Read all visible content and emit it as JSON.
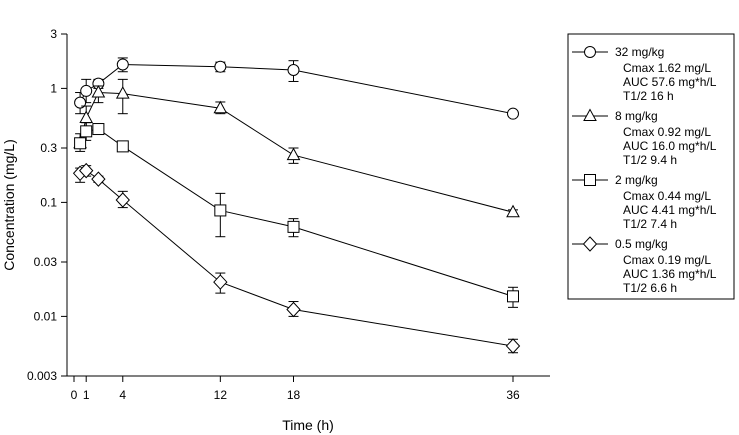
{
  "chart_data": {
    "type": "line",
    "xlabel": "Time (h)",
    "ylabel": "Concentration (mg/L)",
    "xlim": [
      0,
      36
    ],
    "ylim": [
      0.003,
      3
    ],
    "yscale": "log",
    "xticks": [
      0,
      1,
      4,
      12,
      18,
      36
    ],
    "yticks": [
      {
        "value": 0.003,
        "label": "0.003"
      },
      {
        "value": 0.01,
        "label": "0.01"
      },
      {
        "value": 0.03,
        "label": "0.03"
      },
      {
        "value": 0.1,
        "label": "0.1"
      },
      {
        "value": 0.3,
        "label": "0.3"
      },
      {
        "value": 1,
        "label": "1"
      },
      {
        "value": 3,
        "label": "3"
      }
    ],
    "grid": false,
    "legend_position": "right",
    "series": [
      {
        "name": "32 mg/kg",
        "marker": "circle",
        "lines": [
          "Cmax 1.62 mg/L",
          "AUC 57.6 mg*h/L",
          "T1/2 16 h"
        ],
        "x": [
          0.5,
          1,
          2,
          4,
          12,
          18,
          36
        ],
        "y": [
          0.75,
          0.95,
          1.1,
          1.62,
          1.55,
          1.45,
          0.6
        ],
        "err_low": [
          0.6,
          0.75,
          1.0,
          1.4,
          1.4,
          1.15,
          0.58
        ],
        "err_high": [
          0.92,
          1.2,
          1.2,
          1.85,
          1.7,
          1.75,
          0.62
        ]
      },
      {
        "name": "8 mg/kg",
        "marker": "triangle",
        "lines": [
          "Cmax 0.92 mg/L",
          "AUC 16.0 mg*h/L",
          "T1/2 9.4 h"
        ],
        "x": [
          0.5,
          1,
          2,
          4,
          12,
          18,
          36
        ],
        "y": [
          0.33,
          0.55,
          0.92,
          0.9,
          0.67,
          0.26,
          0.082
        ],
        "err_low": [
          0.28,
          0.4,
          0.75,
          0.6,
          0.6,
          0.22,
          0.078
        ],
        "err_high": [
          0.4,
          0.7,
          1.05,
          1.2,
          0.76,
          0.3,
          0.086
        ]
      },
      {
        "name": "2 mg/kg",
        "marker": "square",
        "lines": [
          "Cmax 0.44 mg/L",
          "AUC 4.41 mg*h/L",
          "T1/2 7.4 h"
        ],
        "x": [
          0.5,
          1,
          2,
          4,
          12,
          18,
          36
        ],
        "y": [
          0.33,
          0.42,
          0.44,
          0.31,
          0.085,
          0.061,
          0.015
        ],
        "err_low": [
          0.3,
          0.35,
          0.4,
          0.28,
          0.05,
          0.05,
          0.012
        ],
        "err_high": [
          0.36,
          0.5,
          0.48,
          0.34,
          0.12,
          0.072,
          0.018
        ]
      },
      {
        "name": "0.5 mg/kg",
        "marker": "diamond",
        "lines": [
          "Cmax 0.19 mg/L",
          "AUC 1.36 mg*h/L",
          "T1/2 6.6 h"
        ],
        "x": [
          0.5,
          1,
          2,
          4,
          12,
          18,
          36
        ],
        "y": [
          0.18,
          0.19,
          0.16,
          0.105,
          0.02,
          0.0115,
          0.0055
        ],
        "err_low": [
          0.15,
          0.17,
          0.15,
          0.09,
          0.016,
          0.01,
          0.0048
        ],
        "err_high": [
          0.2,
          0.21,
          0.17,
          0.125,
          0.024,
          0.0135,
          0.0063
        ]
      }
    ]
  }
}
